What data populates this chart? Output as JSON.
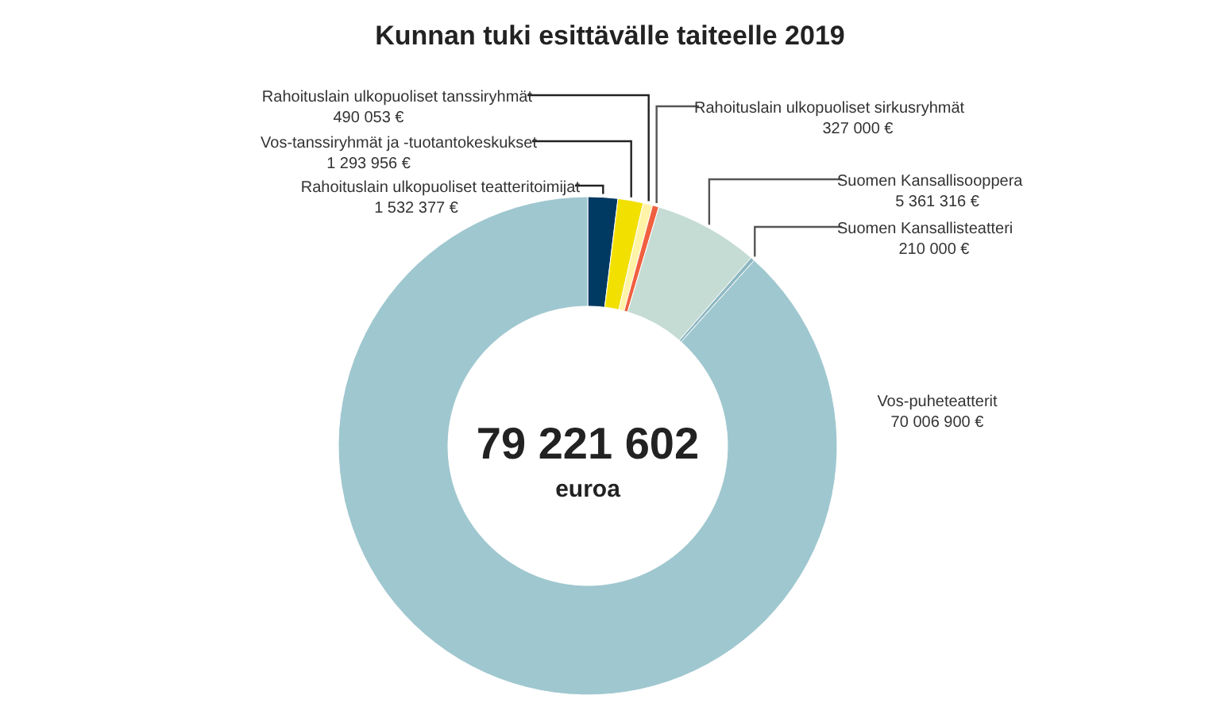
{
  "chart_data": {
    "type": "donut",
    "title": "Kunnan tuki esittävälle taiteelle 2019",
    "categories": [
      "Rahoituslain ulkopuoliset teatteritoimijat",
      "Vos-tanssiryhmät ja -tuotantokeskukset",
      "Rahoituslain ulkopuoliset tanssiryhmät",
      "Rahoituslain ulkopuoliset sirkusryhmät",
      "Suomen Kansallisooppera",
      "Suomen Kansallisteatteri",
      "Vos-puheteatterit"
    ],
    "values": [
      1532377,
      1293956,
      490053,
      327000,
      5361316,
      210000,
      70006900
    ],
    "value_labels": [
      "1 532 377 €",
      "1 293 956 €",
      "490 053 €",
      "327 000 €",
      "5 361 316 €",
      "210 000 €",
      "70 006 900 €"
    ],
    "colors": [
      "#003a63",
      "#f2e000",
      "#fff3a8",
      "#f06040",
      "#c5dcd4",
      "#8fb8c2",
      "#9fc7cf"
    ],
    "annotations": [
      "79 221 602",
      "euroa"
    ]
  }
}
